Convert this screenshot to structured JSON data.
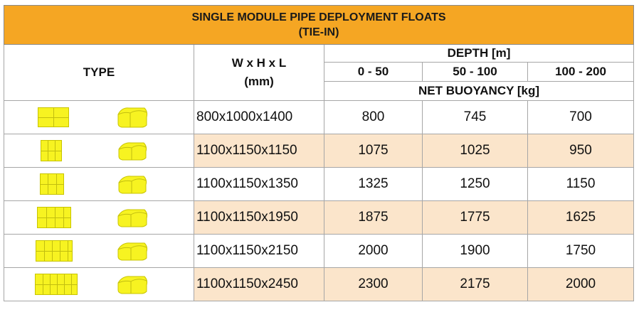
{
  "title": {
    "line1": "SINGLE MODULE PIPE DEPLOYMENT FLOATS",
    "line2": "(TIE-IN)"
  },
  "headers": {
    "type": "TYPE",
    "dimensions_line1": "W x H x L",
    "dimensions_line2": "(mm)",
    "depth": "DEPTH [m]",
    "depth_ranges": [
      "0 - 50",
      "50 - 100",
      "100 - 200"
    ],
    "net_buoyancy": "NET BUOYANCY [kg]"
  },
  "rows": [
    {
      "dimensions": "800x1000x1400",
      "buoyancy": [
        "800",
        "745",
        "700"
      ],
      "shaded": false
    },
    {
      "dimensions": "1100x1150x1150",
      "buoyancy": [
        "1075",
        "1025",
        "950"
      ],
      "shaded": true
    },
    {
      "dimensions": "1100x1150x1350",
      "buoyancy": [
        "1325",
        "1250",
        "1150"
      ],
      "shaded": false
    },
    {
      "dimensions": "1100x1150x1950",
      "buoyancy": [
        "1875",
        "1775",
        "1625"
      ],
      "shaded": true
    },
    {
      "dimensions": "1100x1150x2150",
      "buoyancy": [
        "2000",
        "1900",
        "1750"
      ],
      "shaded": false
    },
    {
      "dimensions": "1100x1150x2450",
      "buoyancy": [
        "2300",
        "2175",
        "2000"
      ],
      "shaded": true
    }
  ],
  "colors": {
    "title_band": "#f5a623",
    "shaded_row": "#fbe5cb",
    "float_yellow": "#f7f321"
  },
  "icons": [
    "float-front-view-icon",
    "float-3d-view-icon"
  ]
}
